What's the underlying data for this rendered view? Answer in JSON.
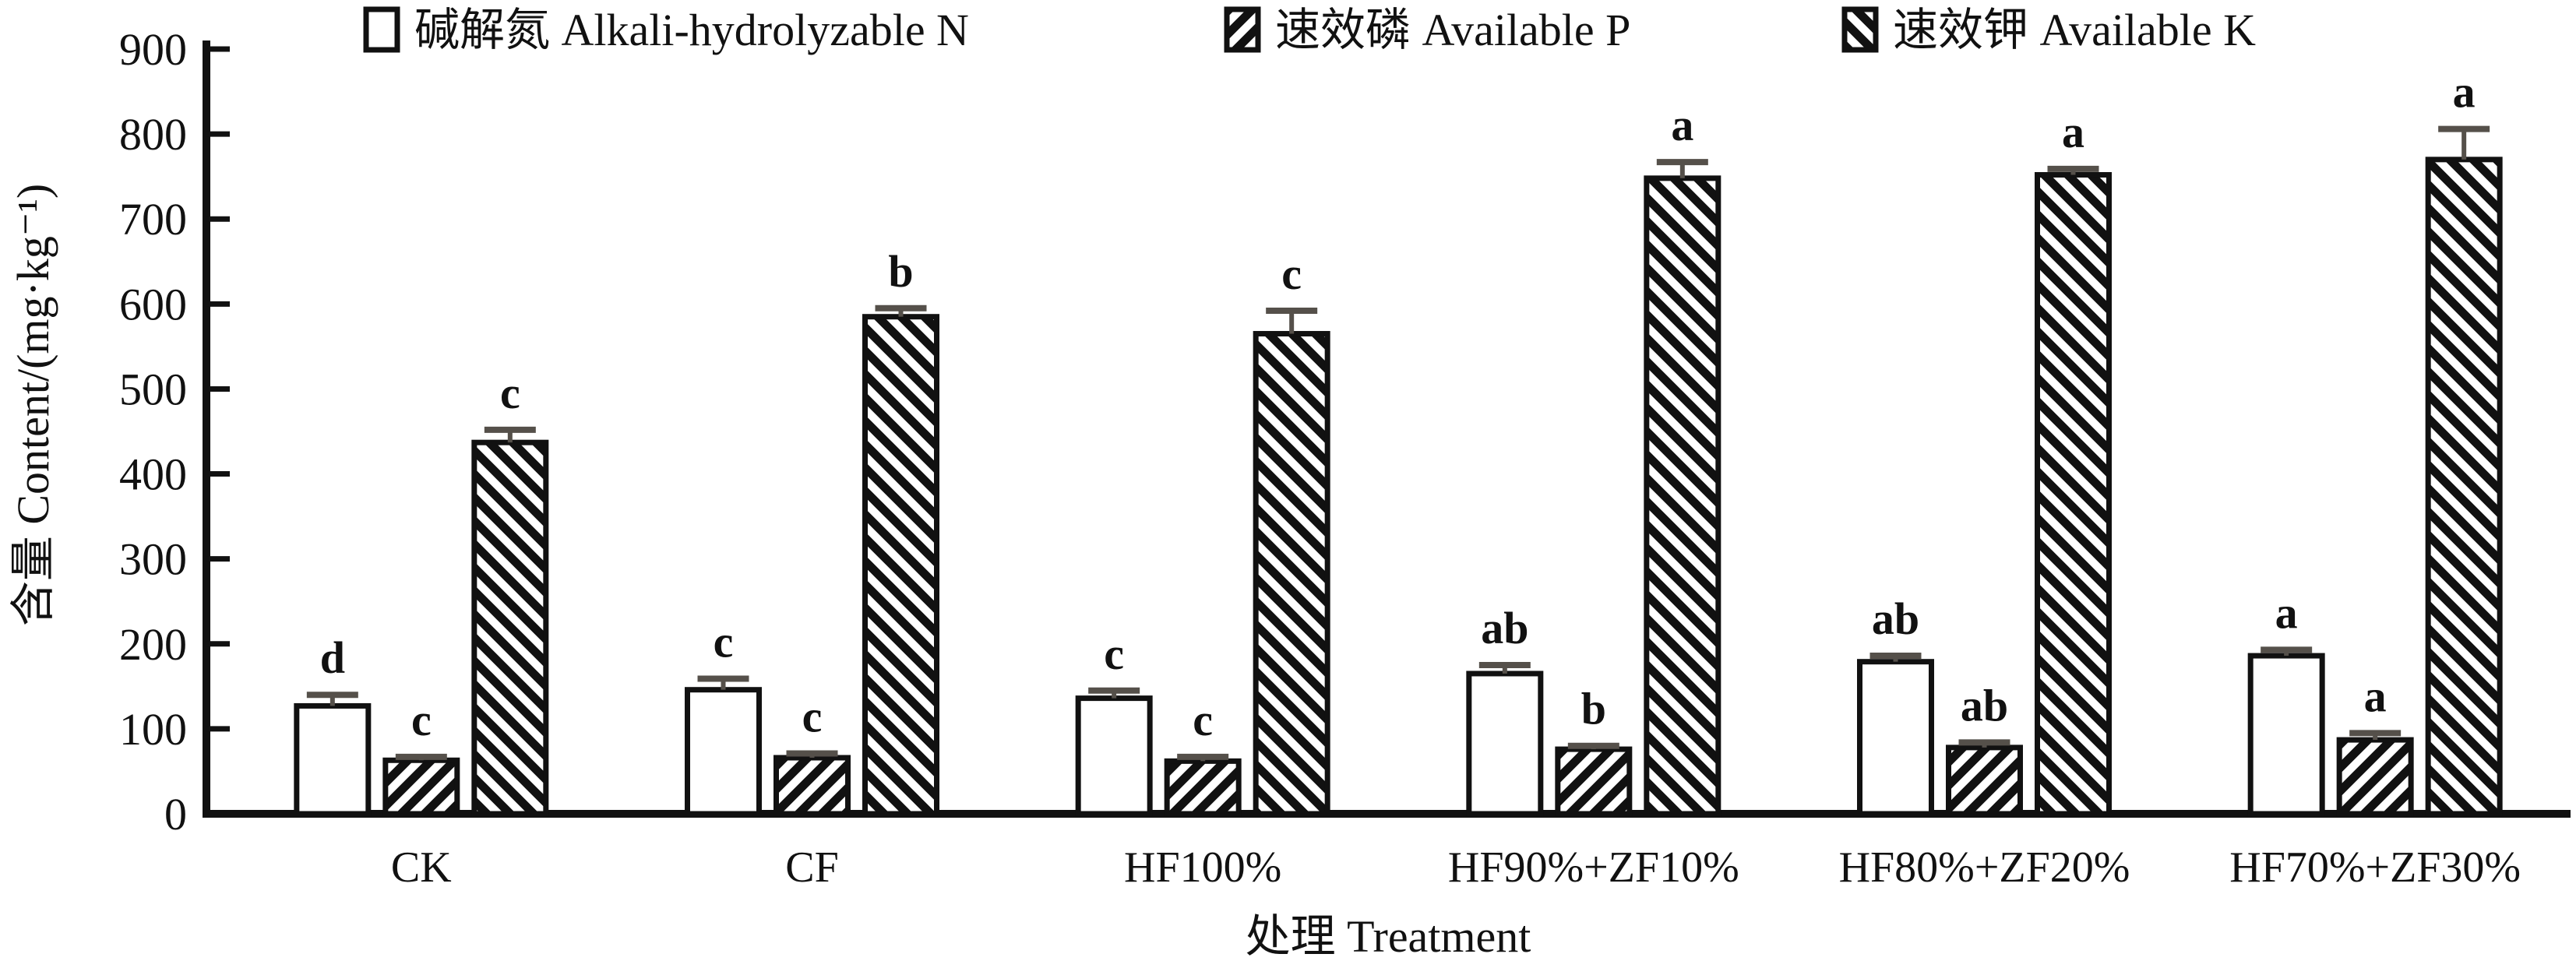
{
  "figure": {
    "colors": {
      "background": "#ffffff",
      "ink": "#111111",
      "error_bar": "#55504a"
    }
  },
  "chart_data": {
    "type": "bar",
    "title": "",
    "xlabel": "处理 Treatment",
    "ylabel": "含量 Content/(mg·kg⁻¹)",
    "ylim": [
      0,
      900
    ],
    "ytick_step": 100,
    "yticks": [
      0,
      100,
      200,
      300,
      400,
      500,
      600,
      700,
      800,
      900
    ],
    "grid": false,
    "legend_position": "top",
    "categories": [
      "CK",
      "CF",
      "HF100%",
      "HF90%+ZF10%",
      "HF80%+ZF20%",
      "HF70%+ZF30%"
    ],
    "series": [
      {
        "name": "碱解氮 Alkali-hydrolyzable N",
        "hatch": "none",
        "values": [
          127,
          146,
          136,
          165,
          179,
          186
        ],
        "errors": [
          13,
          13,
          9,
          10,
          7,
          7
        ],
        "letters": [
          "d",
          "c",
          "c",
          "ab",
          "ab",
          "a"
        ]
      },
      {
        "name": "速效磷 Available P",
        "hatch": "forward-diagonal",
        "values": [
          63,
          66,
          62,
          76,
          78,
          87
        ],
        "errors": [
          4,
          5,
          5,
          4,
          6,
          8
        ],
        "letters": [
          "c",
          "c",
          "c",
          "b",
          "ab",
          "a"
        ]
      },
      {
        "name": "速效钾 Available K",
        "hatch": "backward-diagonal",
        "values": [
          437,
          585,
          565,
          748,
          752,
          770
        ],
        "errors": [
          15,
          10,
          27,
          19,
          7,
          36
        ],
        "letters": [
          "c",
          "b",
          "c",
          "a",
          "a",
          "a"
        ]
      }
    ]
  }
}
